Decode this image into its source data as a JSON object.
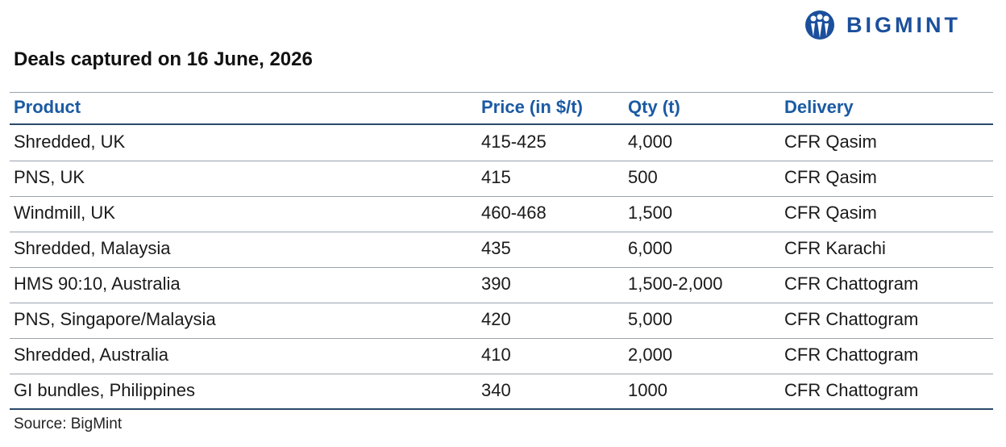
{
  "logo": {
    "text": "BIGMINT"
  },
  "header": {
    "title": "Deals captured on 16 June, 2026"
  },
  "table": {
    "columns": [
      "Product",
      "Price (in $/t)",
      "Qty (t)",
      "Delivery"
    ],
    "rows": [
      [
        "Shredded, UK",
        "415-425",
        "4,000",
        "CFR Qasim"
      ],
      [
        "PNS, UK",
        "415",
        "500",
        "CFR Qasim"
      ],
      [
        "Windmill, UK",
        "460-468",
        "1,500",
        "CFR Qasim"
      ],
      [
        "Shredded, Malaysia",
        "435",
        "6,000",
        "CFR Karachi"
      ],
      [
        "HMS 90:10, Australia",
        "390",
        "1,500-2,000",
        "CFR Chattogram"
      ],
      [
        "PNS, Singapore/Malaysia",
        "420",
        "5,000",
        "CFR Chattogram"
      ],
      [
        "Shredded, Australia",
        "410",
        "2,000",
        "CFR Chattogram"
      ],
      [
        "GI bundles, Philippines",
        "340",
        "1000",
        "CFR Chattogram"
      ]
    ]
  },
  "footer": {
    "source": "Source: BigMint"
  }
}
